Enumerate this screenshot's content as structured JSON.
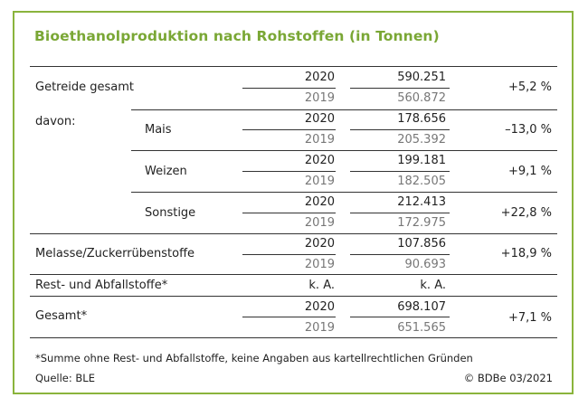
{
  "title": "Bioethanolproduktion nach Rohstoffen (in Tonnen)",
  "rows": {
    "getreide": {
      "label": "Getreide gesamt",
      "y1": "2020",
      "v1": "590.251",
      "y2": "2019",
      "v2": "560.872",
      "change": "+5,2 %"
    },
    "davon": "davon:",
    "mais": {
      "label": "Mais",
      "y1": "2020",
      "v1": "178.656",
      "y2": "2019",
      "v2": "205.392",
      "change": "–13,0 %"
    },
    "weizen": {
      "label": "Weizen",
      "y1": "2020",
      "v1": "199.181",
      "y2": "2019",
      "v2": "182.505",
      "change": "+9,1 %"
    },
    "sonstige": {
      "label": "Sonstige",
      "y1": "2020",
      "v1": "212.413",
      "y2": "2019",
      "v2": "172.975",
      "change": "+22,8 %"
    },
    "melasse": {
      "label": "Melasse/Zuckerrübenstoffe",
      "y1": "2020",
      "v1": "107.856",
      "y2": "2019",
      "v2": "90.693",
      "change": "+18,9 %"
    },
    "rest": {
      "label": "Rest- und Abfallstoffe*",
      "c1": "k. A.",
      "c2": "k. A."
    },
    "gesamt": {
      "label": "Gesamt*",
      "y1": "2020",
      "v1": "698.107",
      "y2": "2019",
      "v2": "651.565",
      "change": "+7,1 %"
    }
  },
  "footnote": "*Summe ohne Rest- und Abfallstoffe, keine Angaben aus kartellrechtlichen Gründen",
  "source": "Quelle: BLE",
  "copyright": "© BDBe 03/2021"
}
